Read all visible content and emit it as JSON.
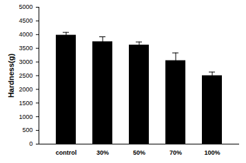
{
  "chart_data": {
    "type": "bar",
    "categories": [
      "control",
      "30%",
      "50%",
      "70%",
      "100%"
    ],
    "values": [
      3980,
      3740,
      3620,
      3050,
      2500
    ],
    "errors": [
      100,
      180,
      110,
      280,
      130
    ],
    "color": "#000000",
    "ylabel": "Hardness(g)",
    "ylim": [
      0,
      5000
    ],
    "yticks": [
      0,
      500,
      1000,
      1500,
      2000,
      2500,
      3000,
      3500,
      4000,
      4500,
      5000
    ],
    "grid": false
  }
}
